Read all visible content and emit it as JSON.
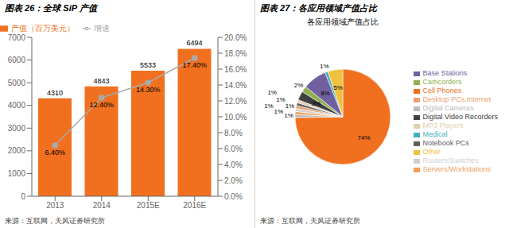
{
  "chart_data": [
    {
      "type": "bar",
      "title": "图表 26：全球 SiP 产值",
      "annotations": [
        "来源：互联网，天风证券研究所"
      ],
      "categories": [
        "2013",
        "2014",
        "2015E",
        "2016E"
      ],
      "series": [
        {
          "name": "产值（百万美元）",
          "type": "bar",
          "color": "#F07020",
          "values": [
            4310,
            4843,
            5533,
            6494
          ],
          "data_labels": true
        },
        {
          "name": "增速",
          "type": "line",
          "color": "#AAAAAA",
          "axis": "y2",
          "marker": "circle",
          "values": [
            6.4,
            12.4,
            14.3,
            17.4
          ],
          "value_labels": [
            "6.40%",
            "12.40%",
            "14.30%",
            "17.40%"
          ],
          "data_labels": true
        }
      ],
      "ylim": [
        0,
        7000
      ],
      "yticks": [
        0,
        1000,
        2000,
        3000,
        4000,
        5000,
        6000,
        7000
      ],
      "y2lim": [
        0,
        20
      ],
      "y2ticks": [
        {
          "value": 0,
          "label": "0.0%"
        },
        {
          "value": 2,
          "label": "2.0%"
        },
        {
          "value": 4,
          "label": "4.0%"
        },
        {
          "value": 6,
          "label": "6.0%"
        },
        {
          "value": 8,
          "label": "8.0%"
        },
        {
          "value": 10,
          "label": "10.0%"
        },
        {
          "value": 12,
          "label": "12.0%"
        },
        {
          "value": 14,
          "label": "14.0%"
        },
        {
          "value": 16,
          "label": "16.0%"
        },
        {
          "value": 18,
          "label": "18.0%"
        },
        {
          "value": 20,
          "label": "20.0%"
        }
      ],
      "legend": "upper left",
      "grid": false
    },
    {
      "type": "pie",
      "title": "图表 27：各应用领域产值占比",
      "subtitle": "各应用领域产值占比",
      "annotations": [
        "来源：互联网，天风证券研究所"
      ],
      "categories": [
        "Cell Phones",
        "Digital Cameras",
        "Servers/Workstations",
        "Routers/Switches",
        "Desktop PCs,Internet",
        "Notebook PCs",
        "MP3 Players",
        "Digital Video Recorders",
        "Camcorders",
        "Base Stations",
        "Medical",
        "Other"
      ],
      "values": [
        74,
        1,
        1,
        1,
        1,
        1,
        1,
        3,
        2,
        8,
        1,
        5
      ],
      "value_labels": [
        "74%",
        "1%",
        "1%",
        "1%",
        "1%",
        "1%",
        "1%",
        "3%",
        "2%",
        "8%",
        "1%",
        "5%"
      ],
      "colors": [
        "#F07020",
        "#BBBBBB",
        "#F0A060",
        "#D0D0D0",
        "#E8A070",
        "#606060",
        "#E0D0B0",
        "#404040",
        "#90B050",
        "#7060A0",
        "#40B0C0",
        "#F0C040"
      ],
      "data_labels": true,
      "legend": "right"
    }
  ]
}
